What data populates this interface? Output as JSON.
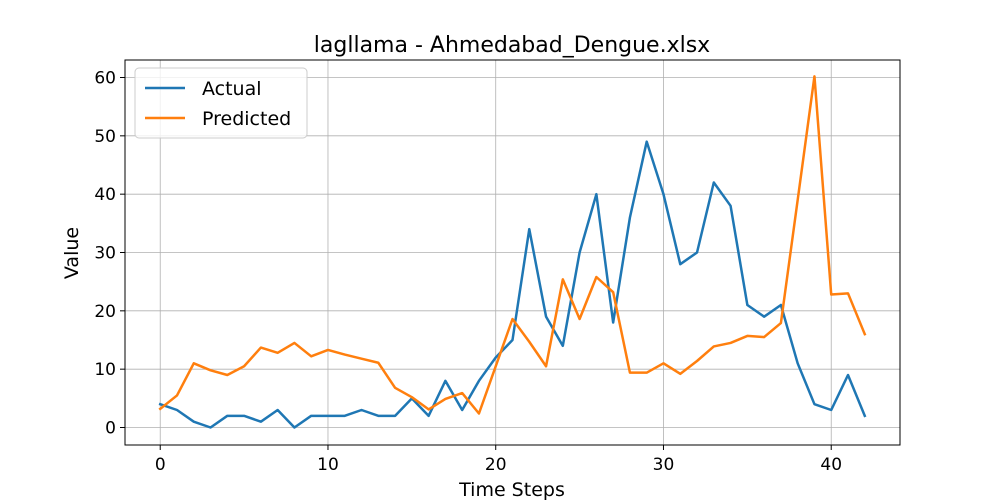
{
  "chart_data": {
    "type": "line",
    "title": "lagllama - Ahmedabad_Dengue.xlsx",
    "xlabel": "Time Steps",
    "ylabel": "Value",
    "xlim": [
      -2.1,
      44.1
    ],
    "ylim": [
      -3,
      63
    ],
    "xticks": [
      0,
      10,
      20,
      30,
      40
    ],
    "yticks": [
      0,
      10,
      20,
      30,
      40,
      50,
      60
    ],
    "grid": true,
    "legend_position": "top-left",
    "x": [
      0,
      1,
      2,
      3,
      4,
      5,
      6,
      7,
      8,
      9,
      10,
      11,
      12,
      13,
      14,
      15,
      16,
      17,
      18,
      19,
      20,
      21,
      22,
      23,
      24,
      25,
      26,
      27,
      28,
      29,
      30,
      31,
      32,
      33,
      34,
      35,
      36,
      37,
      38,
      39,
      40,
      41,
      42
    ],
    "series": [
      {
        "name": "Actual",
        "color": "#1f77b4",
        "values": [
          4,
          3,
          1,
          0,
          2,
          2,
          1,
          3,
          0,
          2,
          2,
          2,
          3,
          2,
          2,
          5,
          2,
          8,
          3,
          8,
          12,
          15,
          34,
          19,
          14,
          30,
          40,
          18,
          36,
          49,
          40,
          28,
          30,
          42,
          38,
          21,
          19,
          21,
          11,
          4,
          3,
          9,
          2
        ]
      },
      {
        "name": "Predicted",
        "color": "#ff7f0e",
        "values": [
          3.2,
          5.5,
          11,
          9.8,
          9,
          10.5,
          13.7,
          12.8,
          14.5,
          12.2,
          13.3,
          12.5,
          11.8,
          11.1,
          6.8,
          5.2,
          3.1,
          4.9,
          5.9,
          2.4,
          10.5,
          18.6,
          14.7,
          10.5,
          25.4,
          18.6,
          25.8,
          23.2,
          9.4,
          9.4,
          11,
          9.2,
          11.4,
          13.9,
          14.5,
          15.7,
          15.5,
          17.9,
          39,
          60.2,
          22.8,
          23,
          16
        ]
      }
    ]
  }
}
